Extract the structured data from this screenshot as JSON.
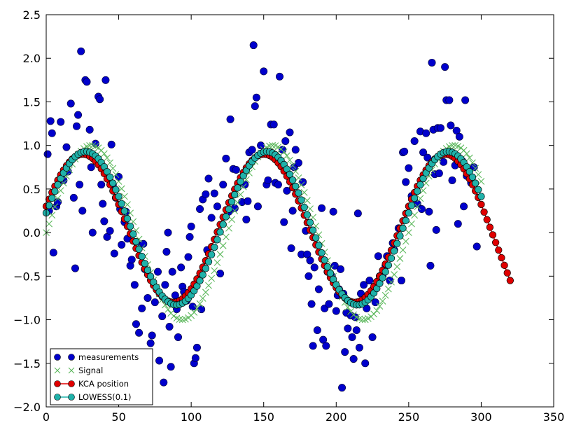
{
  "chart_data": {
    "type": "scatter",
    "title": "",
    "xlabel": "",
    "ylabel": "",
    "xlim": [
      0,
      350
    ],
    "ylim": [
      -2.0,
      2.5
    ],
    "xticks": [
      0,
      50,
      100,
      150,
      200,
      250,
      300,
      350
    ],
    "yticks": [
      -2.0,
      -1.5,
      -1.0,
      -0.5,
      0.0,
      0.5,
      1.0,
      1.5,
      2.0,
      2.5
    ],
    "xtick_labels": [
      "0",
      "50",
      "100",
      "150",
      "200",
      "250",
      "300",
      "350"
    ],
    "ytick_labels": [
      "−2.0",
      "−1.5",
      "−1.0",
      "−0.5",
      "0.0",
      "0.5",
      "1.0",
      "1.5",
      "2.0",
      "2.5"
    ],
    "grid": false,
    "legend_position": "lower-left",
    "signal": {
      "name": "Signal",
      "color": "#5cb85c",
      "marker": "x",
      "x_range": [
        0,
        300
      ],
      "step": 2,
      "function": "sin",
      "period": 125,
      "phase_x": 0
    },
    "kca_position": {
      "name": "KCA position",
      "color": "#e00000",
      "marker": "circle",
      "x_range": [
        0,
        320
      ],
      "step": 2,
      "amplitude": 0.85,
      "period": 125,
      "phase_x": -6,
      "offset": 0.05,
      "tail_start": 300,
      "tail_end_value": -0.55
    },
    "lowess": {
      "name": "LOWESS(0.1)",
      "color": "#20b2aa",
      "marker": "circle",
      "x_range": [
        0,
        300
      ],
      "step": 2,
      "amplitude": 0.88,
      "period": 125,
      "phase_x": -4,
      "offset": 0.05
    },
    "measurements": {
      "name": "measurements",
      "color": "#0000cc",
      "marker": "circle",
      "points": [
        [
          1,
          0.9
        ],
        [
          2,
          0.25
        ],
        [
          3,
          1.28
        ],
        [
          4,
          1.14
        ],
        [
          5,
          -0.23
        ],
        [
          7,
          0.3
        ],
        [
          8,
          0.35
        ],
        [
          10,
          1.27
        ],
        [
          12,
          0.6
        ],
        [
          14,
          0.98
        ],
        [
          15,
          0.7
        ],
        [
          17,
          1.48
        ],
        [
          19,
          0.4
        ],
        [
          20,
          -0.41
        ],
        [
          21,
          1.22
        ],
        [
          22,
          1.35
        ],
        [
          23,
          0.55
        ],
        [
          24,
          2.08
        ],
        [
          25,
          0.25
        ],
        [
          27,
          1.75
        ],
        [
          28,
          1.73
        ],
        [
          30,
          1.18
        ],
        [
          31,
          0.75
        ],
        [
          32,
          0.0
        ],
        [
          34,
          1.02
        ],
        [
          36,
          1.56
        ],
        [
          37,
          1.53
        ],
        [
          38,
          0.55
        ],
        [
          39,
          0.33
        ],
        [
          40,
          0.13
        ],
        [
          41,
          1.75
        ],
        [
          42,
          -0.05
        ],
        [
          44,
          0.02
        ],
        [
          45,
          1.01
        ],
        [
          46,
          0.55
        ],
        [
          47,
          -0.24
        ],
        [
          48,
          0.4
        ],
        [
          50,
          0.64
        ],
        [
          51,
          0.27
        ],
        [
          52,
          -0.14
        ],
        [
          54,
          0.12
        ],
        [
          55,
          0.24
        ],
        [
          56,
          -0.07
        ],
        [
          58,
          -0.38
        ],
        [
          59,
          -0.31
        ],
        [
          61,
          -0.6
        ],
        [
          62,
          -1.05
        ],
        [
          63,
          -0.14
        ],
        [
          64,
          -1.15
        ],
        [
          66,
          -0.87
        ],
        [
          67,
          -0.13
        ],
        [
          68,
          -0.42
        ],
        [
          70,
          -0.75
        ],
        [
          72,
          -1.27
        ],
        [
          73,
          -1.18
        ],
        [
          75,
          -0.8
        ],
        [
          77,
          -0.45
        ],
        [
          78,
          -1.47
        ],
        [
          80,
          -0.96
        ],
        [
          81,
          -1.72
        ],
        [
          82,
          -0.6
        ],
        [
          83,
          -0.22
        ],
        [
          84,
          0.0
        ],
        [
          85,
          -1.08
        ],
        [
          86,
          -1.54
        ],
        [
          87,
          -0.45
        ],
        [
          89,
          -0.72
        ],
        [
          90,
          -0.88
        ],
        [
          91,
          -1.2
        ],
        [
          93,
          -0.4
        ],
        [
          94,
          -0.62
        ],
        [
          95,
          -0.68
        ],
        [
          97,
          -0.78
        ],
        [
          98,
          -0.28
        ],
        [
          99,
          -0.05
        ],
        [
          100,
          0.07
        ],
        [
          101,
          -0.85
        ],
        [
          102,
          -1.5
        ],
        [
          103,
          -1.44
        ],
        [
          104,
          -1.32
        ],
        [
          106,
          0.27
        ],
        [
          107,
          -0.88
        ],
        [
          108,
          0.38
        ],
        [
          110,
          0.44
        ],
        [
          111,
          -0.2
        ],
        [
          112,
          0.62
        ],
        [
          114,
          0.17
        ],
        [
          116,
          0.45
        ],
        [
          118,
          0.3
        ],
        [
          120,
          -0.47
        ],
        [
          122,
          0.55
        ],
        [
          124,
          0.85
        ],
        [
          126,
          0.24
        ],
        [
          127,
          1.3
        ],
        [
          129,
          0.73
        ],
        [
          130,
          0.28
        ],
        [
          131,
          0.72
        ],
        [
          133,
          0.57
        ],
        [
          135,
          0.35
        ],
        [
          137,
          0.55
        ],
        [
          138,
          0.15
        ],
        [
          139,
          0.36
        ],
        [
          140,
          0.92
        ],
        [
          142,
          0.95
        ],
        [
          143,
          2.15
        ],
        [
          144,
          1.45
        ],
        [
          145,
          1.55
        ],
        [
          146,
          0.3
        ],
        [
          148,
          1.0
        ],
        [
          150,
          1.85
        ],
        [
          152,
          0.55
        ],
        [
          153,
          0.6
        ],
        [
          155,
          1.24
        ],
        [
          157,
          1.24
        ],
        [
          158,
          0.57
        ],
        [
          160,
          0.55
        ],
        [
          161,
          1.79
        ],
        [
          163,
          0.95
        ],
        [
          164,
          0.12
        ],
        [
          165,
          1.05
        ],
        [
          166,
          0.48
        ],
        [
          168,
          1.15
        ],
        [
          169,
          -0.18
        ],
        [
          170,
          0.25
        ],
        [
          171,
          0.75
        ],
        [
          172,
          0.95
        ],
        [
          174,
          0.8
        ],
        [
          176,
          -0.25
        ],
        [
          177,
          0.58
        ],
        [
          179,
          0.02
        ],
        [
          180,
          -0.25
        ],
        [
          181,
          -0.5
        ],
        [
          182,
          -0.32
        ],
        [
          183,
          -0.82
        ],
        [
          184,
          -1.3
        ],
        [
          185,
          -0.4
        ],
        [
          187,
          -1.12
        ],
        [
          188,
          -0.65
        ],
        [
          190,
          0.28
        ],
        [
          191,
          -1.23
        ],
        [
          192,
          -0.87
        ],
        [
          193,
          -1.3
        ],
        [
          194,
          -0.45
        ],
        [
          195,
          -0.82
        ],
        [
          197,
          -0.5
        ],
        [
          198,
          0.24
        ],
        [
          199,
          -0.38
        ],
        [
          200,
          -0.9
        ],
        [
          201,
          -0.72
        ],
        [
          202,
          -0.65
        ],
        [
          203,
          -0.42
        ],
        [
          204,
          -1.78
        ],
        [
          205,
          -0.7
        ],
        [
          206,
          -1.37
        ],
        [
          207,
          -0.92
        ],
        [
          208,
          -1.1
        ],
        [
          210,
          -0.95
        ],
        [
          211,
          -1.2
        ],
        [
          212,
          -1.45
        ],
        [
          213,
          -0.97
        ],
        [
          214,
          -1.12
        ],
        [
          215,
          0.22
        ],
        [
          216,
          -1.32
        ],
        [
          217,
          -0.7
        ],
        [
          219,
          -0.6
        ],
        [
          220,
          -1.5
        ],
        [
          221,
          -0.87
        ],
        [
          223,
          -0.55
        ],
        [
          225,
          -1.2
        ],
        [
          227,
          -0.8
        ],
        [
          229,
          -0.27
        ],
        [
          230,
          -0.5
        ],
        [
          232,
          -0.5
        ],
        [
          234,
          -0.38
        ],
        [
          235,
          -0.27
        ],
        [
          237,
          -0.55
        ],
        [
          239,
          -0.12
        ],
        [
          240,
          -0.2
        ],
        [
          243,
          0.05
        ],
        [
          245,
          -0.55
        ],
        [
          246,
          0.92
        ],
        [
          247,
          0.93
        ],
        [
          248,
          0.58
        ],
        [
          250,
          0.74
        ],
        [
          252,
          0.42
        ],
        [
          254,
          1.05
        ],
        [
          256,
          0.33
        ],
        [
          258,
          1.16
        ],
        [
          259,
          0.27
        ],
        [
          260,
          0.92
        ],
        [
          262,
          1.14
        ],
        [
          263,
          0.86
        ],
        [
          264,
          0.24
        ],
        [
          265,
          -0.38
        ],
        [
          266,
          1.95
        ],
        [
          267,
          1.18
        ],
        [
          268,
          0.67
        ],
        [
          269,
          0.03
        ],
        [
          270,
          1.2
        ],
        [
          271,
          0.68
        ],
        [
          272,
          1.2
        ],
        [
          274,
          0.81
        ],
        [
          275,
          1.9
        ],
        [
          276,
          1.52
        ],
        [
          278,
          1.52
        ],
        [
          279,
          1.23
        ],
        [
          280,
          0.6
        ],
        [
          282,
          0.77
        ],
        [
          283,
          1.17
        ],
        [
          284,
          0.1
        ],
        [
          285,
          1.1
        ],
        [
          287,
          0.82
        ],
        [
          288,
          0.3
        ],
        [
          289,
          1.52
        ],
        [
          290,
          0.65
        ],
        [
          293,
          0.57
        ],
        [
          295,
          0.75
        ],
        [
          297,
          -0.16
        ]
      ]
    },
    "legend": [
      {
        "label": "measurements",
        "marker": "circle",
        "color": "#0000cc",
        "line": false
      },
      {
        "label": "Signal",
        "marker": "x",
        "color": "#5cb85c",
        "line": false
      },
      {
        "label": "KCA position",
        "marker": "circle",
        "color": "#e00000",
        "line": true
      },
      {
        "label": "LOWESS(0.1)",
        "marker": "circle",
        "color": "#20b2aa",
        "line": true
      }
    ]
  }
}
